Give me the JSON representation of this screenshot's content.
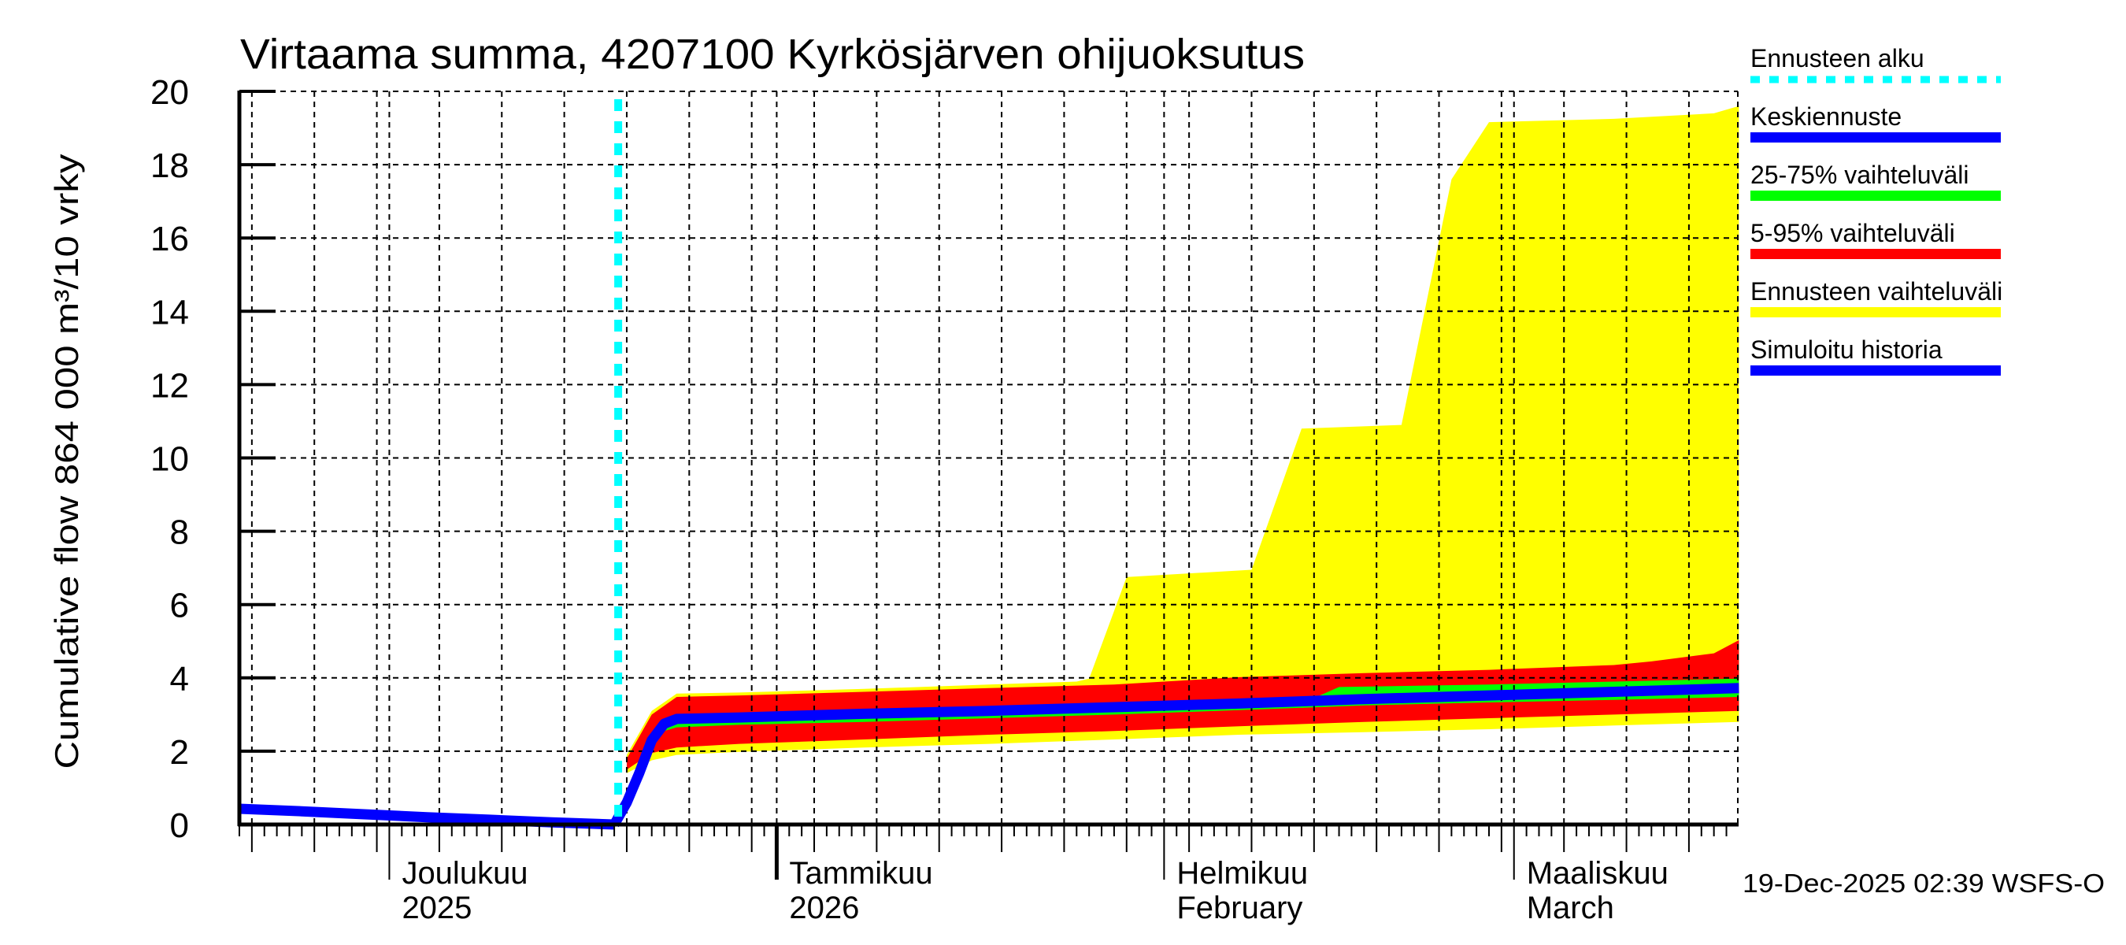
{
  "title": "Virtaama summa, 4207100 Kyrkösjärven ohijuoksutus",
  "y_axis_label": "Cumulative flow    864 000 m³/10 vrky",
  "timestamp": "19-Dec-2025 02:39 WSFS-O",
  "colors": {
    "forecast_start": "#00ffff",
    "mean_forecast": "#0000ff",
    "band_25_75": "#00ff00",
    "band_5_95": "#ff0000",
    "band_full": "#ffff00",
    "simulated_history": "#0000ff",
    "grid": "#000000",
    "axis": "#000000"
  },
  "legend": [
    {
      "label": "Ennusteen alku",
      "color": "#00ffff",
      "style": "dotted"
    },
    {
      "label": "Keskiennuste",
      "color": "#0000ff",
      "style": "solid"
    },
    {
      "label": "25-75% vaihteluväli",
      "color": "#00ff00",
      "style": "solid"
    },
    {
      "label": "5-95% vaihteluväli",
      "color": "#ff0000",
      "style": "solid"
    },
    {
      "label": "Ennusteen vaihteluväli",
      "color": "#ffff00",
      "style": "solid"
    },
    {
      "label": "Simuloitu historia",
      "color": "#0000ff",
      "style": "solid"
    }
  ],
  "x_axis": {
    "month_labels": [
      {
        "line1": "Joulukuu",
        "line2": "2025",
        "date": "2025-12-01"
      },
      {
        "line1": "Tammikuu",
        "line2": "2026",
        "date": "2026-01-01"
      },
      {
        "line1": "Helmikuu",
        "line2": "February",
        "date": "2026-02-01"
      },
      {
        "line1": "Maaliskuu",
        "line2": "March",
        "date": "2026-03-01"
      }
    ]
  },
  "chart_data": {
    "type": "area",
    "title": "Virtaama summa, 4207100 Kyrkösjärven ohijuoksutus",
    "xlabel": "",
    "ylabel": "Cumulative flow    864 000 m³/10 vrky",
    "x_unit": "days since 2025-11-19",
    "x_range": [
      0,
      120
    ],
    "ylim": [
      0,
      20
    ],
    "yticks": [
      0,
      2,
      4,
      6,
      8,
      10,
      12,
      14,
      16,
      18,
      20
    ],
    "grid": true,
    "legend_position": "right",
    "forecast_start_day": 30,
    "forecast_start_date": "2025-12-19",
    "series": [
      {
        "name": "Simuloitu historia",
        "kind": "line",
        "points": [
          [
            0,
            0.43
          ],
          [
            5,
            0.36
          ],
          [
            10,
            0.28
          ],
          [
            15,
            0.2
          ],
          [
            20,
            0.13
          ],
          [
            25,
            0.06
          ],
          [
            30,
            0.0
          ]
        ]
      },
      {
        "name": "Keskiennuste",
        "kind": "line",
        "points": [
          [
            30,
            0.0
          ],
          [
            31,
            0.6
          ],
          [
            32,
            1.4
          ],
          [
            33,
            2.3
          ],
          [
            34,
            2.75
          ],
          [
            35,
            2.88
          ],
          [
            40,
            2.92
          ],
          [
            50,
            3.02
          ],
          [
            60,
            3.1
          ],
          [
            70,
            3.2
          ],
          [
            80,
            3.3
          ],
          [
            90,
            3.42
          ],
          [
            100,
            3.52
          ],
          [
            110,
            3.62
          ],
          [
            120,
            3.72
          ]
        ]
      },
      {
        "name": "25-75% vaihteluväli",
        "kind": "band",
        "upper": [
          [
            33,
            2.4
          ],
          [
            34,
            2.8
          ],
          [
            35,
            2.95
          ],
          [
            40,
            3.0
          ],
          [
            50,
            3.08
          ],
          [
            60,
            3.17
          ],
          [
            70,
            3.27
          ],
          [
            80,
            3.38
          ],
          [
            86,
            3.45
          ],
          [
            88,
            3.75
          ],
          [
            100,
            3.82
          ],
          [
            110,
            3.9
          ],
          [
            120,
            3.98
          ]
        ],
        "lower": [
          [
            33,
            2.2
          ],
          [
            34,
            2.55
          ],
          [
            35,
            2.65
          ],
          [
            40,
            2.72
          ],
          [
            50,
            2.8
          ],
          [
            60,
            2.9
          ],
          [
            70,
            3.0
          ],
          [
            80,
            3.12
          ],
          [
            90,
            3.25
          ],
          [
            100,
            3.33
          ],
          [
            110,
            3.4
          ],
          [
            120,
            3.48
          ]
        ]
      },
      {
        "name": "5-95% vaihteluväli",
        "kind": "band",
        "upper": [
          [
            31,
            1.8
          ],
          [
            33,
            3.0
          ],
          [
            35,
            3.48
          ],
          [
            40,
            3.52
          ],
          [
            50,
            3.62
          ],
          [
            60,
            3.72
          ],
          [
            70,
            3.82
          ],
          [
            80,
            4.02
          ],
          [
            90,
            4.13
          ],
          [
            100,
            4.22
          ],
          [
            110,
            4.35
          ],
          [
            113,
            4.45
          ],
          [
            118,
            4.67
          ],
          [
            120,
            5.03
          ]
        ],
        "lower": [
          [
            31,
            1.5
          ],
          [
            33,
            1.95
          ],
          [
            35,
            2.1
          ],
          [
            40,
            2.2
          ],
          [
            50,
            2.32
          ],
          [
            60,
            2.45
          ],
          [
            70,
            2.55
          ],
          [
            80,
            2.68
          ],
          [
            90,
            2.8
          ],
          [
            100,
            2.9
          ],
          [
            110,
            3.0
          ],
          [
            120,
            3.1
          ]
        ]
      },
      {
        "name": "Ennusteen vaihteluväli",
        "kind": "band",
        "upper": [
          [
            31,
            1.9
          ],
          [
            33,
            3.1
          ],
          [
            35,
            3.57
          ],
          [
            40,
            3.6
          ],
          [
            50,
            3.7
          ],
          [
            60,
            3.82
          ],
          [
            67,
            3.9
          ],
          [
            68,
            3.98
          ],
          [
            71,
            6.75
          ],
          [
            81,
            6.95
          ],
          [
            85,
            10.8
          ],
          [
            93,
            10.9
          ],
          [
            97,
            17.6
          ],
          [
            100,
            19.16
          ],
          [
            110,
            19.25
          ],
          [
            118,
            19.4
          ],
          [
            120,
            19.6
          ]
        ],
        "lower": [
          [
            31,
            1.4
          ],
          [
            33,
            1.75
          ],
          [
            35,
            1.9
          ],
          [
            40,
            1.98
          ],
          [
            50,
            2.1
          ],
          [
            60,
            2.2
          ],
          [
            70,
            2.32
          ],
          [
            80,
            2.45
          ],
          [
            90,
            2.52
          ],
          [
            100,
            2.6
          ],
          [
            110,
            2.7
          ],
          [
            120,
            2.8
          ]
        ]
      }
    ]
  }
}
